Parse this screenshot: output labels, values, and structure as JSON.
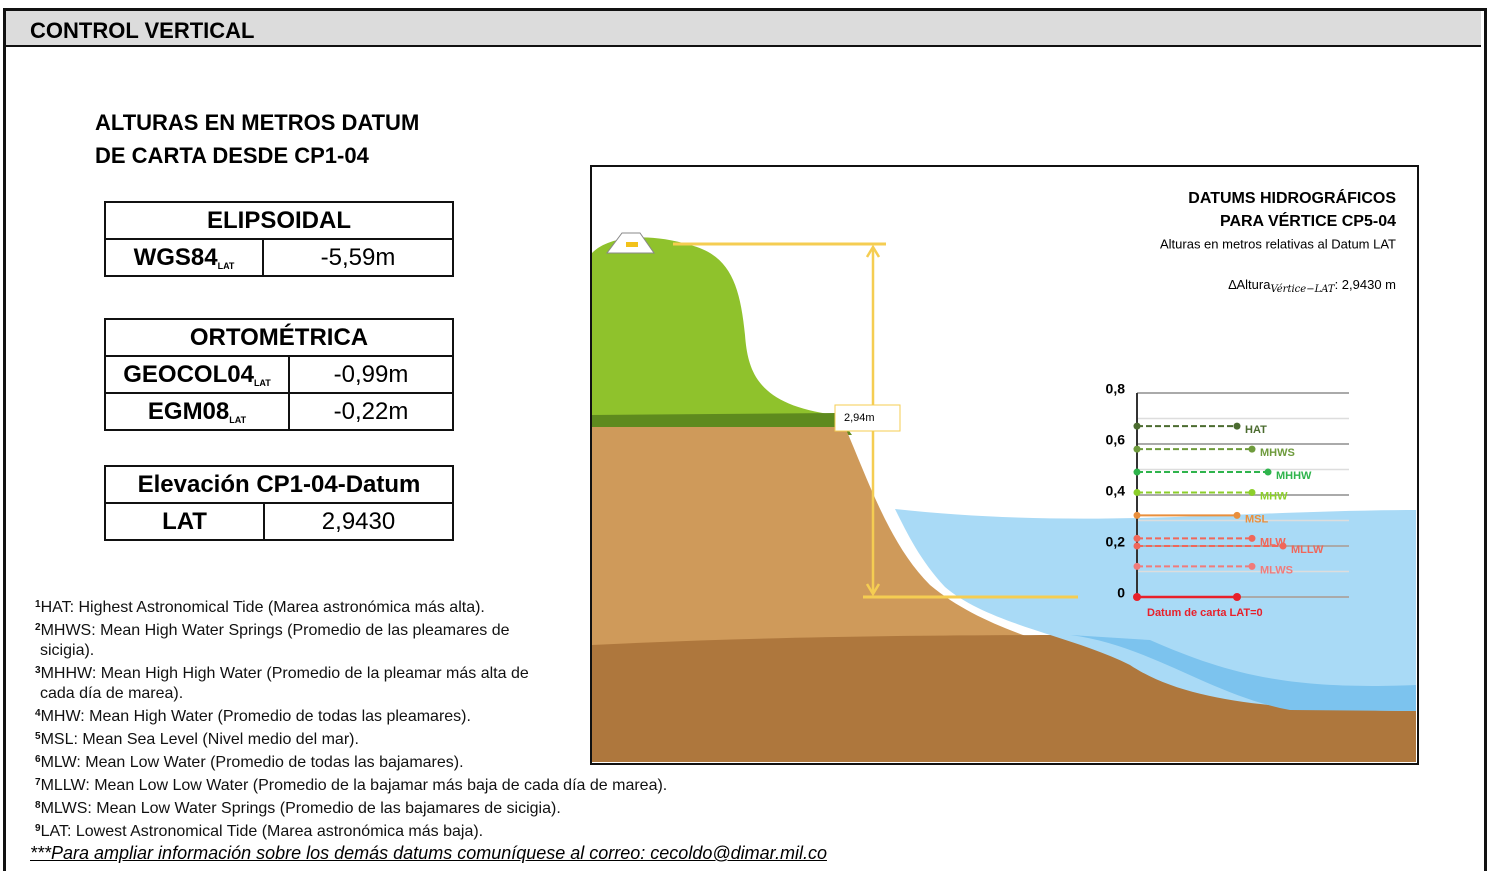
{
  "header": {
    "title": "CONTROL VERTICAL"
  },
  "heading": [
    "ALTURAS EN METROS DATUM",
    "DE CARTA DESDE CP1-04"
  ],
  "tables": [
    {
      "title": "ELIPSOIDAL",
      "rows": [
        {
          "name": "WGS84",
          "sub": "LAT",
          "value": "-5,59m"
        }
      ]
    },
    {
      "title": "ORTOMÉTRICA",
      "rows": [
        {
          "name": "GEOCOL04",
          "sub": "LAT",
          "value": "-0,99m"
        },
        {
          "name": "EGM08",
          "sub": "LAT",
          "value": "-0,22m"
        }
      ]
    },
    {
      "title": "Elevación CP1-04-Datum",
      "rows": [
        {
          "name": "LAT",
          "value": "2,9430"
        }
      ]
    }
  ],
  "footnotes": [
    {
      "num": "1",
      "text": "HAT: Highest Astronomical Tide (Marea astronómica más alta)."
    },
    {
      "num": "2",
      "text": "MHWS: Mean High Water Springs (Promedio de las pleamares de sicigia)."
    },
    {
      "num": "3",
      "text": "MHHW: Mean High High Water (Promedio de la pleamar más alta de cada día de marea)."
    },
    {
      "num": "4",
      "text": "MHW: Mean High Water (Promedio de todas las pleamares)."
    },
    {
      "num": "5",
      "text": "MSL: Mean Sea Level (Nivel medio del mar)."
    },
    {
      "num": "6",
      "text": "MLW: Mean Low Water (Promedio de todas las bajamares)."
    },
    {
      "num": "7",
      "text": "MLLW: Mean Low Low Water (Promedio de la bajamar más baja de cada día de marea)."
    },
    {
      "num": "8",
      "text": "MLWS: Mean Low Water Springs (Promedio de las bajamares de sicigia)."
    },
    {
      "num": "9",
      "text": "LAT: Lowest Astronomical Tide (Marea astronómica más baja)."
    }
  ],
  "note": "***Para ampliar información sobre los demás datums comuníquese al correo: cecoldo@dimar.mil.co",
  "diagram": {
    "title": [
      "DATUMS HIDROGRÁFICOS",
      "PARA VÉRTICE CP5-04"
    ],
    "subtitle": "Alturas en metros relativas al Datum LAT",
    "delta": {
      "label": "∆Altura",
      "sub": "Vértice−LAT",
      "value": ": 2,9430 m"
    },
    "height_label": "2,94m",
    "chart": {
      "type": "levels",
      "ylim": [
        0,
        0.8
      ],
      "yticks": [
        0,
        {
          "value": 0.2,
          "label": "0,2"
        },
        {
          "value": 0.4,
          "label": "0,4"
        },
        {
          "value": 0.6,
          "label": "0,6"
        },
        {
          "value": 0.8,
          "label": "0,8"
        }
      ],
      "minor_grid": [
        0.1,
        0.3,
        0.5,
        0.7
      ],
      "levels": [
        {
          "name": "HAT",
          "color": "#4b6b2f",
          "value": 0.67
        },
        {
          "name": "MHWS",
          "color": "#6e9b3c",
          "value": 0.58
        },
        {
          "name": "MHHW",
          "color": "#2fb44c",
          "value": 0.49
        },
        {
          "name": "MHW",
          "color": "#8ccf2a",
          "value": 0.41
        },
        {
          "name": "MSL",
          "color": "#e98f3c",
          "value": 0.32
        },
        {
          "name": "MLW",
          "color": "#f0675a",
          "value": 0.23
        },
        {
          "name": "MLLW",
          "color": "#f0675a",
          "value": 0.2
        },
        {
          "name": "MLWS",
          "color": "#f07b7b",
          "value": 0.12
        }
      ],
      "datum": {
        "label": "Datum de carta LAT=0",
        "color": "#e8202a",
        "value": 0
      }
    }
  }
}
